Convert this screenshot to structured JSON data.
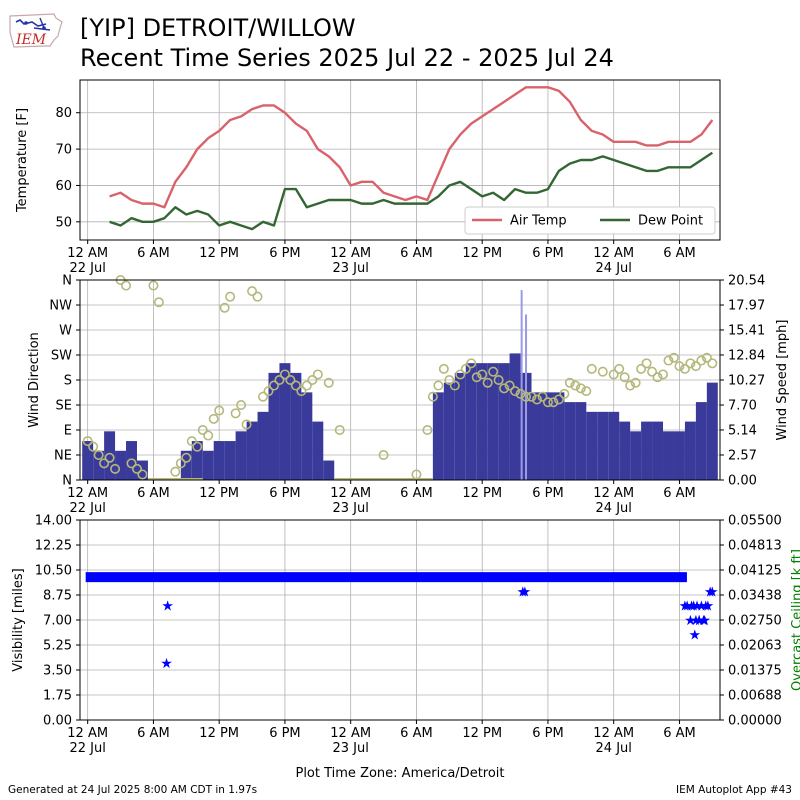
{
  "header": {
    "title_line1": "[YIP] DETROIT/WILLOW",
    "title_line2": "Recent Time Series 2025 Jul 22 - 2025 Jul 24",
    "logo_text": "IEM"
  },
  "footer": {
    "generated": "Generated at 24 Jul 2025 8:00 AM CDT in 1.97s",
    "app": "IEM Autoplot App #43"
  },
  "colors": {
    "air_temp": "#d9626b",
    "dew_point": "#336633",
    "wind_speed": "#3a3a9a",
    "wind_gust": "#9a9ae6",
    "wind_direction": "#b5b87a",
    "visibility": "#0000ff",
    "ceiling_axis": "#008000"
  },
  "chart_data": [
    {
      "type": "line",
      "ylabel": "Temperature [F]",
      "ylim": [
        45,
        89
      ],
      "yticks": [
        "50",
        "60",
        "70",
        "80"
      ],
      "grid": true,
      "legend": "lower-right",
      "x_tick_labels": [
        {
          "hour": 0,
          "line1": "12 AM",
          "line2": "22 Jul"
        },
        {
          "hour": 6,
          "line1": "6 AM",
          "line2": ""
        },
        {
          "hour": 12,
          "line1": "12 PM",
          "line2": ""
        },
        {
          "hour": 18,
          "line1": "6 PM",
          "line2": ""
        },
        {
          "hour": 24,
          "line1": "12 AM",
          "line2": "23 Jul"
        },
        {
          "hour": 30,
          "line1": "6 AM",
          "line2": ""
        },
        {
          "hour": 36,
          "line1": "12 PM",
          "line2": ""
        },
        {
          "hour": 42,
          "line1": "6 PM",
          "line2": ""
        },
        {
          "hour": 48,
          "line1": "12 AM",
          "line2": "24 Jul"
        },
        {
          "hour": 54,
          "line1": "6 AM",
          "line2": ""
        }
      ],
      "series": [
        {
          "name": "Air Temp",
          "x": [
            2,
            3,
            4,
            5,
            6,
            7,
            8,
            9,
            10,
            11,
            12,
            13,
            14,
            15,
            16,
            17,
            18,
            19,
            20,
            21,
            22,
            23,
            24,
            25,
            26,
            27,
            28,
            29,
            30,
            31,
            32,
            33,
            34,
            35,
            36,
            37,
            38,
            39,
            40,
            41,
            42,
            43,
            44,
            45,
            46,
            47,
            48,
            49,
            50,
            51,
            52,
            53,
            54,
            55,
            56,
            57
          ],
          "values": [
            57,
            58,
            56,
            55,
            55,
            54,
            61,
            65,
            70,
            73,
            75,
            78,
            79,
            81,
            82,
            82,
            80,
            77,
            75,
            70,
            68,
            65,
            60,
            61,
            61,
            58,
            57,
            56,
            57,
            56,
            63,
            70,
            74,
            77,
            79,
            81,
            83,
            85,
            87,
            87,
            87,
            86,
            83,
            78,
            75,
            74,
            72,
            72,
            72,
            71,
            71,
            72,
            72,
            72,
            74,
            78
          ]
        },
        {
          "name": "Dew Point",
          "x": [
            2,
            3,
            4,
            5,
            6,
            7,
            8,
            9,
            10,
            11,
            12,
            13,
            14,
            15,
            16,
            17,
            18,
            19,
            20,
            21,
            22,
            23,
            24,
            25,
            26,
            27,
            28,
            29,
            30,
            31,
            32,
            33,
            34,
            35,
            36,
            37,
            38,
            39,
            40,
            41,
            42,
            43,
            44,
            45,
            46,
            47,
            48,
            49,
            50,
            51,
            52,
            53,
            54,
            55,
            56,
            57
          ],
          "values": [
            50,
            49,
            51,
            50,
            50,
            51,
            54,
            52,
            53,
            52,
            49,
            50,
            49,
            48,
            50,
            49,
            59,
            59,
            54,
            55,
            56,
            56,
            56,
            55,
            55,
            56,
            55,
            55,
            55,
            55,
            57,
            60,
            61,
            59,
            57,
            58,
            56,
            59,
            58,
            58,
            59,
            64,
            66,
            67,
            67,
            68,
            67,
            66,
            65,
            64,
            64,
            65,
            65,
            65,
            67,
            69
          ]
        }
      ]
    },
    {
      "type": "bar",
      "ylabel": "Wind Direction",
      "y2label": "Wind Speed [mph]",
      "direction_ticks": [
        "N",
        "NE",
        "E",
        "SE",
        "S",
        "SW",
        "W",
        "NW",
        "N"
      ],
      "speed_ticks": [
        "0.00",
        "2.57",
        "5.14",
        "7.70",
        "10.27",
        "12.84",
        "15.41",
        "17.97",
        "20.54"
      ],
      "ylim": [
        0,
        20.54
      ],
      "grid": true,
      "x_tick_labels": [
        {
          "hour": 0,
          "line1": "12 AM",
          "line2": "22 Jul"
        },
        {
          "hour": 6,
          "line1": "6 AM",
          "line2": ""
        },
        {
          "hour": 12,
          "line1": "12 PM",
          "line2": ""
        },
        {
          "hour": 18,
          "line1": "6 PM",
          "line2": ""
        },
        {
          "hour": 24,
          "line1": "12 AM",
          "line2": "23 Jul"
        },
        {
          "hour": 30,
          "line1": "6 AM",
          "line2": ""
        },
        {
          "hour": 36,
          "line1": "12 PM",
          "line2": ""
        },
        {
          "hour": 42,
          "line1": "6 PM",
          "line2": ""
        },
        {
          "hour": 48,
          "line1": "12 AM",
          "line2": "24 Jul"
        },
        {
          "hour": 54,
          "line1": "6 AM",
          "line2": ""
        }
      ],
      "speed": {
        "x": [
          0,
          1,
          2,
          3,
          4,
          5,
          6,
          7,
          8,
          9,
          10,
          11,
          12,
          13,
          14,
          15,
          16,
          17,
          18,
          19,
          20,
          21,
          22,
          23,
          24,
          25,
          26,
          27,
          28,
          29,
          30,
          31,
          32,
          33,
          34,
          35,
          36,
          37,
          38,
          39,
          40,
          41,
          42,
          43,
          44,
          45,
          46,
          47,
          48,
          49,
          50,
          51,
          52,
          53,
          54,
          55,
          56,
          57
        ],
        "values": [
          4,
          3,
          5,
          3,
          4,
          2,
          0,
          0,
          0,
          3,
          4,
          3,
          4,
          4,
          5,
          6,
          7,
          11,
          12,
          11,
          9,
          6,
          2,
          0,
          0,
          0,
          0,
          0,
          0,
          0,
          0,
          0,
          9,
          10,
          11,
          12,
          12,
          12,
          12,
          13,
          11,
          9,
          9,
          9,
          8,
          8,
          7,
          7,
          7,
          6,
          5,
          6,
          6,
          5,
          5,
          6,
          8,
          10
        ]
      },
      "gust": {
        "x": [
          39.6,
          40.0
        ],
        "values": [
          19.5,
          17.0
        ]
      },
      "direction_deg": {
        "x": [
          0,
          0.5,
          1,
          1.5,
          2,
          2.5,
          3,
          3.5,
          4,
          4.5,
          5,
          6,
          6.5,
          8,
          8.5,
          9,
          9.5,
          10,
          10.5,
          11,
          11.5,
          12,
          12.5,
          13,
          13.5,
          14,
          14.5,
          15,
          15.5,
          16,
          16.5,
          17,
          17.5,
          18,
          18.5,
          19,
          19.5,
          20,
          20.5,
          21,
          22,
          23,
          27,
          30,
          31,
          31.5,
          32,
          32.5,
          33,
          33.5,
          34,
          34.5,
          35,
          35.5,
          36,
          36.5,
          37,
          37.5,
          38,
          38.5,
          39,
          39.5,
          40,
          40.5,
          41,
          41.5,
          42,
          42.5,
          43,
          43.5,
          44,
          44.5,
          45,
          45.5,
          46,
          47,
          48,
          48.5,
          49,
          49.5,
          50,
          50.5,
          51,
          51.5,
          52,
          52.5,
          53,
          53.5,
          54,
          54.5,
          55,
          55.5,
          56,
          56.5,
          57
        ],
        "values": [
          70,
          60,
          45,
          30,
          40,
          20,
          360,
          350,
          30,
          20,
          10,
          350,
          320,
          15,
          30,
          40,
          70,
          60,
          90,
          80,
          110,
          125,
          310,
          330,
          120,
          135,
          100,
          340,
          330,
          150,
          160,
          170,
          180,
          190,
          180,
          170,
          160,
          170,
          180,
          190,
          175,
          90,
          45,
          10,
          90,
          150,
          170,
          200,
          180,
          170,
          190,
          200,
          210,
          185,
          190,
          175,
          195,
          180,
          165,
          170,
          160,
          155,
          150,
          150,
          145,
          150,
          140,
          140,
          145,
          155,
          175,
          170,
          165,
          160,
          200,
          195,
          190,
          200,
          185,
          170,
          175,
          200,
          210,
          195,
          185,
          190,
          215,
          220,
          205,
          200,
          210,
          205,
          215,
          220,
          210
        ]
      }
    },
    {
      "type": "scatter",
      "ylabel": "Visibility [miles]",
      "y2label": "Overcast Ceiling [k ft]",
      "ylim": [
        0,
        14
      ],
      "y2lim": [
        0,
        0.055
      ],
      "yticks": [
        "0.00",
        "1.75",
        "3.50",
        "5.25",
        "7.00",
        "8.75",
        "10.50",
        "12.25",
        "14.00"
      ],
      "y2ticks": [
        "0.00000",
        "0.00688",
        "0.01375",
        "0.02063",
        "0.02750",
        "0.03438",
        "0.04125",
        "0.04813",
        "0.05500"
      ],
      "grid": true,
      "xlabel": "Plot Time Zone: America/Detroit",
      "x_tick_labels": [
        {
          "hour": 0,
          "line1": "12 AM",
          "line2": "22 Jul"
        },
        {
          "hour": 6,
          "line1": "6 AM",
          "line2": ""
        },
        {
          "hour": 12,
          "line1": "12 PM",
          "line2": ""
        },
        {
          "hour": 18,
          "line1": "6 PM",
          "line2": ""
        },
        {
          "hour": 24,
          "line1": "12 AM",
          "line2": "23 Jul"
        },
        {
          "hour": 30,
          "line1": "6 AM",
          "line2": ""
        },
        {
          "hour": 36,
          "line1": "12 PM",
          "line2": ""
        },
        {
          "hour": 42,
          "line1": "6 PM",
          "line2": ""
        },
        {
          "hour": 48,
          "line1": "12 AM",
          "line2": "24 Jul"
        },
        {
          "hour": 54,
          "line1": "6 AM",
          "line2": ""
        }
      ],
      "baseline_value": 10,
      "baseline_range": [
        0,
        54.5
      ],
      "series": [
        {
          "name": "Visibility",
          "x": [
            7.2,
            7.3,
            39.7,
            39.9,
            54.5,
            54.7,
            55.0,
            55.1,
            55.3,
            55.5,
            55.6,
            55.8,
            56.0,
            56.2,
            56.4,
            56.6,
            56.8,
            57.0,
            55.4,
            55.8,
            56.3
          ],
          "values": [
            4,
            8,
            9,
            9,
            8,
            8,
            7,
            8,
            8,
            7,
            8,
            7,
            8,
            7,
            8,
            8,
            9,
            9,
            6,
            7,
            7
          ]
        }
      ]
    }
  ]
}
